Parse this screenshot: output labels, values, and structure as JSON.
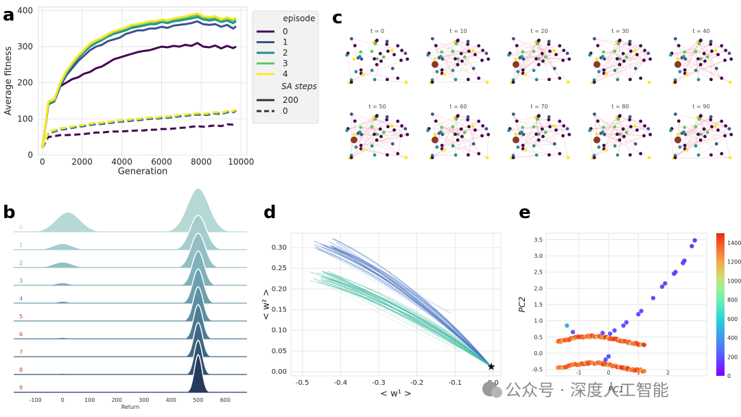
{
  "panels": {
    "a": "a",
    "b": "b",
    "c": "c",
    "d": "d",
    "e": "e"
  },
  "watermark": "公众号 · 深度人工智能",
  "chart_data": [
    {
      "id": "a",
      "type": "line",
      "xlabel": "Generation",
      "ylabel": "Average fitness",
      "xlim": [
        -200,
        10300
      ],
      "ylim": [
        0,
        410
      ],
      "xticks": [
        0,
        2000,
        4000,
        6000,
        8000,
        10000
      ],
      "yticks": [
        0,
        100,
        200,
        300,
        400
      ],
      "grid": true,
      "legend": {
        "title": "episode",
        "entries": [
          "0",
          "1",
          "2",
          "3",
          "4"
        ],
        "style_title": "SA steps",
        "style_entries": [
          "200",
          "0"
        ],
        "placement": "right"
      },
      "x": [
        0,
        300,
        600,
        900,
        1200,
        1500,
        1800,
        2100,
        2400,
        2700,
        3000,
        3300,
        3600,
        3900,
        4200,
        4500,
        4800,
        5100,
        5400,
        5700,
        6000,
        6300,
        6600,
        6900,
        7200,
        7500,
        7800,
        8100,
        8400,
        8700,
        9000,
        9300,
        9600,
        9750
      ],
      "series": [
        {
          "episode": "0",
          "steps": "200",
          "color": "#440154",
          "values": [
            20,
            140,
            150,
            190,
            200,
            210,
            215,
            225,
            230,
            240,
            245,
            255,
            265,
            270,
            275,
            280,
            285,
            288,
            290,
            295,
            300,
            298,
            302,
            300,
            305,
            302,
            310,
            300,
            298,
            303,
            295,
            302,
            296,
            300
          ]
        },
        {
          "episode": "1",
          "steps": "200",
          "color": "#3b528b",
          "values": [
            20,
            140,
            148,
            190,
            220,
            240,
            260,
            275,
            290,
            300,
            305,
            315,
            320,
            325,
            335,
            340,
            345,
            345,
            350,
            350,
            355,
            352,
            358,
            360,
            362,
            365,
            370,
            362,
            360,
            362,
            355,
            360,
            350,
            356
          ]
        },
        {
          "episode": "2",
          "steps": "200",
          "color": "#21918c",
          "values": [
            20,
            142,
            150,
            195,
            225,
            248,
            268,
            285,
            300,
            310,
            318,
            328,
            335,
            340,
            345,
            352,
            355,
            358,
            362,
            362,
            368,
            365,
            370,
            372,
            375,
            378,
            382,
            375,
            372,
            375,
            368,
            372,
            365,
            370
          ]
        },
        {
          "episode": "3",
          "steps": "200",
          "color": "#5ec962",
          "values": [
            20,
            145,
            152,
            198,
            230,
            252,
            272,
            290,
            305,
            315,
            322,
            332,
            340,
            345,
            350,
            357,
            360,
            363,
            367,
            368,
            372,
            370,
            375,
            378,
            380,
            384,
            388,
            380,
            378,
            380,
            372,
            377,
            372,
            375
          ]
        },
        {
          "episode": "4",
          "steps": "200",
          "color": "#fde725",
          "values": [
            20,
            148,
            155,
            200,
            232,
            255,
            275,
            292,
            308,
            318,
            325,
            335,
            343,
            348,
            353,
            360,
            363,
            366,
            370,
            371,
            375,
            373,
            378,
            381,
            384,
            388,
            392,
            384,
            382,
            384,
            376,
            381,
            376,
            380
          ]
        },
        {
          "episode": "0",
          "steps": "0",
          "color": "#440154",
          "values": [
            20,
            50,
            52,
            55,
            55,
            56,
            57,
            58,
            60,
            62,
            62,
            64,
            65,
            65,
            66,
            67,
            68,
            68,
            70,
            70,
            72,
            72,
            73,
            75,
            76,
            78,
            80,
            78,
            80,
            82,
            80,
            85,
            84,
            88
          ]
        },
        {
          "episode": "1",
          "steps": "0",
          "color": "#3b528b",
          "values": [
            20,
            60,
            65,
            70,
            72,
            75,
            78,
            80,
            83,
            85,
            86,
            88,
            90,
            92,
            93,
            95,
            96,
            98,
            100,
            100,
            102,
            103,
            105,
            107,
            108,
            110,
            112,
            110,
            112,
            115,
            113,
            118,
            118,
            122
          ]
        },
        {
          "episode": "2",
          "steps": "0",
          "color": "#21918c",
          "values": [
            20,
            62,
            67,
            72,
            74,
            77,
            80,
            82,
            85,
            87,
            88,
            90,
            92,
            94,
            95,
            97,
            98,
            100,
            102,
            102,
            104,
            105,
            107,
            109,
            110,
            112,
            114,
            112,
            114,
            117,
            115,
            120,
            120,
            124
          ]
        },
        {
          "episode": "3",
          "steps": "0",
          "color": "#5ec962",
          "values": [
            20,
            63,
            68,
            73,
            75,
            78,
            81,
            83,
            86,
            88,
            89,
            91,
            93,
            95,
            96,
            98,
            99,
            101,
            103,
            103,
            105,
            106,
            108,
            110,
            111,
            113,
            115,
            113,
            115,
            118,
            116,
            121,
            121,
            125
          ]
        },
        {
          "episode": "4",
          "steps": "0",
          "color": "#fde725",
          "values": [
            20,
            64,
            69,
            74,
            76,
            79,
            82,
            84,
            87,
            89,
            90,
            92,
            94,
            96,
            97,
            99,
            100,
            102,
            104,
            104,
            106,
            107,
            109,
            111,
            112,
            114,
            116,
            114,
            116,
            119,
            117,
            122,
            122,
            126
          ]
        }
      ]
    },
    {
      "id": "b",
      "type": "area",
      "xlabel": "Return",
      "xlim": [
        -180,
        680
      ],
      "xticks": [
        -100,
        0,
        100,
        200,
        300,
        400,
        500,
        600
      ],
      "rows": [
        {
          "label": "0",
          "color": "#b7d9d6",
          "label_color": "#c8c8c8",
          "left_mode": 20,
          "left_amp": 0.45,
          "left_sd": 45,
          "right_mode": 500,
          "right_amp": 1.0,
          "right_sd": 40
        },
        {
          "label": "1",
          "color": "#a5cdcd",
          "label_color": "#8fb9b9",
          "left_mode": 0,
          "left_amp": 0.18,
          "left_sd": 35,
          "right_mode": 500,
          "right_amp": 1.0,
          "right_sd": 30
        },
        {
          "label": "2",
          "color": "#93bfc3",
          "label_color": "#5fa9a9",
          "left_mode": 0,
          "left_amp": 0.16,
          "left_sd": 35,
          "right_mode": 500,
          "right_amp": 1.0,
          "right_sd": 26
        },
        {
          "label": "3",
          "color": "#80b0b9",
          "label_color": "#4a9399",
          "left_mode": 0,
          "left_amp": 0.08,
          "left_sd": 25,
          "right_mode": 500,
          "right_amp": 1.0,
          "right_sd": 22
        },
        {
          "label": "4",
          "color": "#6e9fae",
          "label_color": "#4d7f99",
          "left_mode": 0,
          "left_amp": 0.06,
          "left_sd": 20,
          "right_mode": 500,
          "right_amp": 1.0,
          "right_sd": 20
        },
        {
          "label": "5",
          "color": "#5d8ea2",
          "label_color": "#c0392b",
          "left_mode": 0,
          "left_amp": 0.0,
          "left_sd": 20,
          "right_mode": 500,
          "right_amp": 1.0,
          "right_sd": 18
        },
        {
          "label": "6",
          "color": "#4d7b93",
          "label_color": "#c0392b",
          "left_mode": 0,
          "left_amp": 0.04,
          "left_sd": 20,
          "right_mode": 500,
          "right_amp": 1.0,
          "right_sd": 17
        },
        {
          "label": "7",
          "color": "#3f6783",
          "label_color": "#c0392b",
          "left_mode": 0,
          "left_amp": 0.0,
          "left_sd": 20,
          "right_mode": 500,
          "right_amp": 1.0,
          "right_sd": 16
        },
        {
          "label": "8",
          "color": "#325271",
          "label_color": "#c0392b",
          "left_mode": 0,
          "left_amp": 0.03,
          "left_sd": 20,
          "right_mode": 500,
          "right_amp": 1.0,
          "right_sd": 15
        },
        {
          "label": "9",
          "color": "#243b5c",
          "label_color": "#c0392b",
          "left_mode": 0,
          "left_amp": 0.0,
          "left_sd": 20,
          "right_mode": 500,
          "right_amp": 1.0,
          "right_sd": 14
        }
      ]
    },
    {
      "id": "c",
      "type": "other",
      "subplot_titles": [
        "t = 0",
        "t = 10",
        "t = 20",
        "t = 30",
        "t = 40",
        "t = 50",
        "t = 60",
        "t = 70",
        "t = 80",
        "t = 90"
      ],
      "node_colors": [
        "#440154",
        "#440154",
        "#440154",
        "#3b528b",
        "#21918c",
        "#5ec962",
        "#fde725"
      ],
      "edge_color": "#e8a0a8"
    },
    {
      "id": "d",
      "type": "line",
      "xlabel": "< w¹ >",
      "ylabel": "< w² >",
      "xlim": [
        -0.53,
        0.02
      ],
      "ylim": [
        -0.01,
        0.335
      ],
      "xticks": [
        -0.5,
        -0.4,
        -0.3,
        -0.2,
        -0.1,
        0.0
      ],
      "yticks": [
        0.0,
        0.05,
        0.1,
        0.15,
        0.2,
        0.25,
        0.3
      ],
      "grid": true,
      "bundles": [
        {
          "name": "upper",
          "color": "#4472c4",
          "start": [
            -0.44,
            0.31
          ],
          "mid": [
            -0.22,
            0.22
          ],
          "end": [
            -0.005,
            0.012
          ],
          "count": 22
        },
        {
          "name": "lower",
          "color": "#3cb8a0",
          "start": [
            -0.45,
            0.23
          ],
          "mid": [
            -0.2,
            0.15
          ],
          "end": [
            -0.005,
            0.012
          ],
          "count": 22
        }
      ],
      "star": {
        "x": -0.005,
        "y": 0.012
      }
    },
    {
      "id": "e",
      "type": "scatter",
      "xlabel": "PC1",
      "ylabel": "PC2",
      "xlim": [
        -2.1,
        3.3
      ],
      "ylim": [
        -0.7,
        3.7
      ],
      "xticks": [
        "-1",
        "0",
        "1",
        "2"
      ],
      "xtick_values": [
        -1,
        0,
        1,
        2
      ],
      "yticks": [
        -0.5,
        0.0,
        0.5,
        1.0,
        1.5,
        2.0,
        2.5,
        3.0,
        3.5
      ],
      "grid": true,
      "colorbar": {
        "min": 0,
        "max": 1500,
        "ticks": [
          0,
          200,
          400,
          600,
          800,
          1000,
          1200,
          1400
        ],
        "cmap": "rainbow"
      },
      "scatter_points": [
        {
          "x": 2.9,
          "y": 3.48,
          "c": 150
        },
        {
          "x": 2.8,
          "y": 3.3,
          "c": 150
        },
        {
          "x": 2.55,
          "y": 2.85,
          "c": 160
        },
        {
          "x": 2.5,
          "y": 2.78,
          "c": 160
        },
        {
          "x": 2.25,
          "y": 2.5,
          "c": 170
        },
        {
          "x": 2.2,
          "y": 2.45,
          "c": 170
        },
        {
          "x": 1.9,
          "y": 2.15,
          "c": 180
        },
        {
          "x": 1.8,
          "y": 2.05,
          "c": 180
        },
        {
          "x": 1.5,
          "y": 1.7,
          "c": 190
        },
        {
          "x": 1.1,
          "y": 1.3,
          "c": 200
        },
        {
          "x": 1.0,
          "y": 1.2,
          "c": 200
        },
        {
          "x": 0.6,
          "y": 0.95,
          "c": 210
        },
        {
          "x": 0.5,
          "y": 0.85,
          "c": 210
        },
        {
          "x": 0.2,
          "y": 0.7,
          "c": 220
        },
        {
          "x": 0.05,
          "y": 0.6,
          "c": 220
        },
        {
          "x": -1.4,
          "y": 0.85,
          "c": 500
        },
        {
          "x": -1.2,
          "y": 0.65,
          "c": 220
        },
        {
          "x": -0.2,
          "y": 0.62,
          "c": 210
        },
        {
          "x": 0.0,
          "y": -0.1,
          "c": 220
        },
        {
          "x": -0.1,
          "y": -0.2,
          "c": 220
        }
      ],
      "curves": [
        {
          "name": "upper",
          "x0": -1.7,
          "x1": 1.2,
          "y_mid": 0.4,
          "amp": 0.12
        },
        {
          "name": "lower",
          "x0": -1.7,
          "x1": 1.2,
          "y_mid": -0.42,
          "amp": 0.12
        }
      ]
    }
  ]
}
